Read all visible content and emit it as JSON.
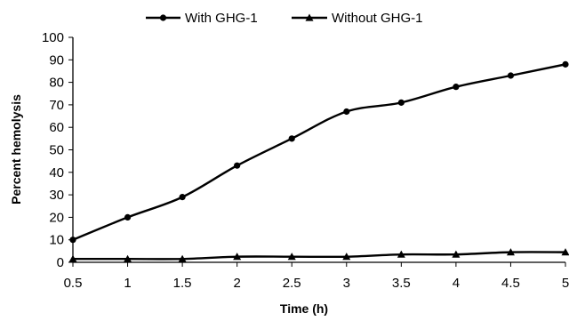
{
  "chart_data": {
    "type": "line",
    "title": "",
    "xlabel": "Time (h)",
    "ylabel": "Percent hemolysis",
    "x": [
      0.5,
      1,
      1.5,
      2,
      2.5,
      3,
      3.5,
      4,
      4.5,
      5
    ],
    "xticks": [
      "0.5",
      "1",
      "1.5",
      "2",
      "2.5",
      "3",
      "3.5",
      "4",
      "4.5",
      "5"
    ],
    "yticks": [
      "0",
      "10",
      "20",
      "30",
      "40",
      "50",
      "60",
      "70",
      "80",
      "90",
      "100"
    ],
    "ylim": [
      0,
      100
    ],
    "grid": false,
    "legend_position": "top-center",
    "series": [
      {
        "name": "With GHG-1",
        "marker": "circle",
        "color": "#000000",
        "values": [
          10,
          20,
          29,
          43,
          55,
          67,
          71,
          78,
          83,
          88
        ]
      },
      {
        "name": "Without GHG-1",
        "marker": "triangle",
        "color": "#000000",
        "values": [
          1.5,
          1.5,
          1.5,
          2.5,
          2.5,
          2.5,
          3.5,
          3.5,
          4.5,
          4.5
        ]
      }
    ]
  }
}
